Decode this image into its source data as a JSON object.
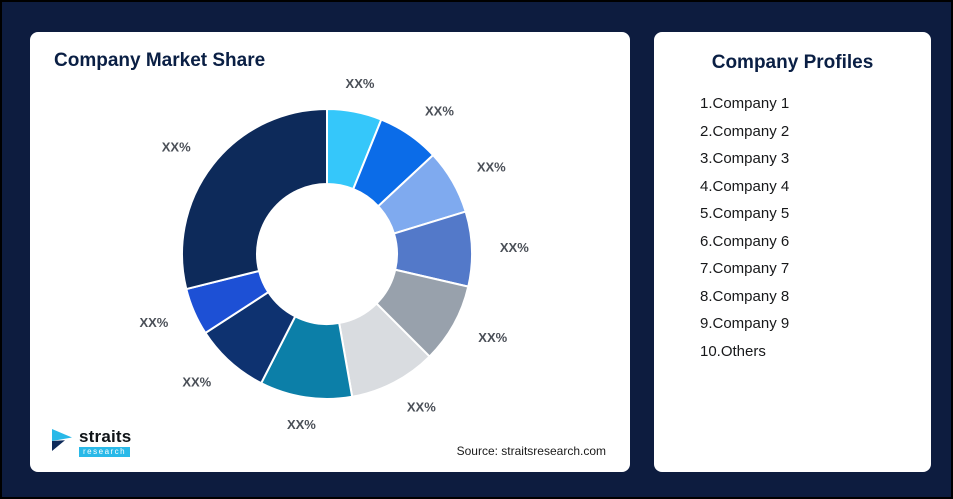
{
  "page": {
    "background": "#0D1C3F"
  },
  "market_share_card": {
    "title": "Company Market Share",
    "source": "Source: straitsresearch.com",
    "logo": {
      "brand": "straits",
      "sub_brand": "research"
    }
  },
  "profiles_card": {
    "title": "Company Profiles",
    "items": [
      "1.Company 1",
      "2.Company 2",
      "3.Company 3",
      "4.Company 4",
      "5.Company 5",
      "6.Company 6",
      "7.Company 7",
      "8.Company 8",
      "9.Company 9",
      "10.Others"
    ]
  },
  "chart_data": {
    "type": "pie",
    "variant": "donut",
    "title": "Company Market Share",
    "legend": "none",
    "value_units": "arc degrees estimated from image; all percentage labels are masked as XX% in the source graphic",
    "segments": [
      {
        "label": "XX%",
        "value": 22,
        "color": "#35C7FA"
      },
      {
        "label": "XX%",
        "value": 25,
        "color": "#0B6CE8"
      },
      {
        "label": "XX%",
        "value": 26,
        "color": "#7FAAEF"
      },
      {
        "label": "XX%",
        "value": 30,
        "color": "#5379C9"
      },
      {
        "label": "XX%",
        "value": 32,
        "color": "#98A1AC"
      },
      {
        "label": "XX%",
        "value": 35,
        "color": "#D9DCE0"
      },
      {
        "label": "XX%",
        "value": 37,
        "color": "#0C7FA8"
      },
      {
        "label": "XX%",
        "value": 30,
        "color": "#0E3270"
      },
      {
        "label": "XX%",
        "value": 19,
        "color": "#1D50D5"
      },
      {
        "label": "XX%",
        "value": 104,
        "color": "#0D2A5A"
      }
    ]
  }
}
